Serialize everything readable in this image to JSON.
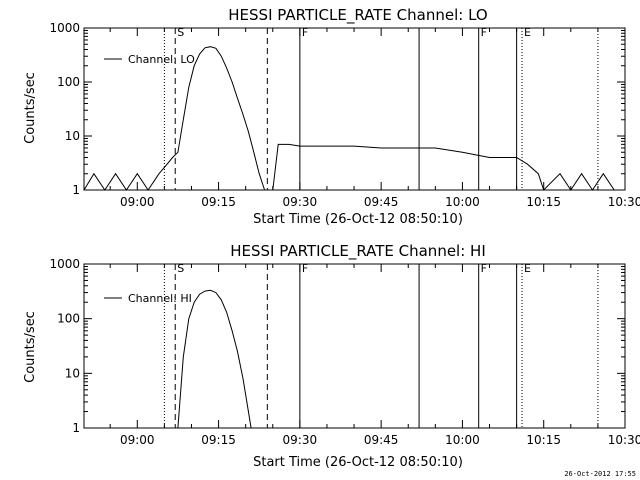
{
  "footer_timestamp": "26-Oct-2012 17:55",
  "colors": {
    "background": "#ffffff",
    "foreground": "#000000"
  },
  "chart_data": [
    {
      "type": "line",
      "title": "HESSI PARTICLE_RATE Channel: LO",
      "xlabel": "Start Time (26-Oct-12 08:50:10)",
      "ylabel": "Counts/sec",
      "y_scale": "log",
      "ylim": [
        1,
        1000
      ],
      "y_ticks": [
        "1",
        "10",
        "100",
        "1000"
      ],
      "x_ticks": [
        "09:00",
        "09:15",
        "09:30",
        "09:45",
        "10:00",
        "10:15",
        "10:30"
      ],
      "grid": false,
      "legend": {
        "position": "top-left",
        "entries": [
          "Channel: LO"
        ]
      },
      "series": [
        {
          "name": "Channel: LO",
          "points": [
            [
              "08:50:10",
              1
            ],
            [
              "08:52",
              2
            ],
            [
              "08:54",
              1
            ],
            [
              "08:56",
              2
            ],
            [
              "08:58",
              1
            ],
            [
              "09:00",
              2
            ],
            [
              "09:02",
              1
            ],
            [
              "09:04",
              2
            ],
            [
              "09:05:30",
              3
            ],
            [
              "09:06:30",
              4
            ],
            [
              "09:07:30",
              5
            ],
            [
              "09:08:30",
              20
            ],
            [
              "09:09:30",
              80
            ],
            [
              "09:10:30",
              200
            ],
            [
              "09:11:30",
              330
            ],
            [
              "09:12:30",
              430
            ],
            [
              "09:13:30",
              450
            ],
            [
              "09:14:30",
              420
            ],
            [
              "09:15:30",
              300
            ],
            [
              "09:16:30",
              180
            ],
            [
              "09:17:30",
              100
            ],
            [
              "09:18:30",
              50
            ],
            [
              "09:19:30",
              25
            ],
            [
              "09:20:30",
              12
            ],
            [
              "09:21:30",
              5
            ],
            [
              "09:22:30",
              2
            ],
            [
              "09:23:30",
              1
            ],
            [
              "09:25",
              1
            ],
            [
              "09:26",
              7
            ],
            [
              "09:28",
              7
            ],
            [
              "09:30",
              6.5
            ],
            [
              "09:35",
              6.5
            ],
            [
              "09:40",
              6.5
            ],
            [
              "09:45",
              6
            ],
            [
              "09:50",
              6
            ],
            [
              "09:55",
              6
            ],
            [
              "10:00",
              5
            ],
            [
              "10:05",
              4
            ],
            [
              "10:08",
              4
            ],
            [
              "10:10",
              4
            ],
            [
              "10:12",
              3
            ],
            [
              "10:14",
              2
            ],
            [
              "10:15",
              1
            ],
            [
              "10:18",
              2
            ],
            [
              "10:20",
              1
            ],
            [
              "10:22",
              2
            ],
            [
              "10:24",
              1
            ],
            [
              "10:26",
              2
            ],
            [
              "10:28",
              1
            ]
          ]
        }
      ],
      "markers": [
        {
          "time": "09:05",
          "style": "dotted",
          "label": ""
        },
        {
          "time": "09:07",
          "style": "dashed",
          "label": "S"
        },
        {
          "time": "09:24",
          "style": "dashed",
          "label": ""
        },
        {
          "time": "09:30",
          "style": "solid",
          "label": "F"
        },
        {
          "time": "09:52",
          "style": "solid",
          "label": ""
        },
        {
          "time": "10:03",
          "style": "solid",
          "label": "F"
        },
        {
          "time": "10:10",
          "style": "solid",
          "label": ""
        },
        {
          "time": "10:11",
          "style": "dotted",
          "label": "E"
        },
        {
          "time": "10:25",
          "style": "dotted",
          "label": ""
        }
      ]
    },
    {
      "type": "line",
      "title": "HESSI PARTICLE_RATE Channel: HI",
      "xlabel": "Start Time (26-Oct-12 08:50:10)",
      "ylabel": "Counts/sec",
      "y_scale": "log",
      "ylim": [
        1,
        1000
      ],
      "y_ticks": [
        "1",
        "10",
        "100",
        "1000"
      ],
      "x_ticks": [
        "09:00",
        "09:15",
        "09:30",
        "09:45",
        "10:00",
        "10:15",
        "10:30"
      ],
      "grid": false,
      "legend": {
        "position": "top-left",
        "entries": [
          "Channel: HI"
        ]
      },
      "series": [
        {
          "name": "Channel: HI",
          "points": [
            [
              "09:07:30",
              1
            ],
            [
              "09:08:30",
              20
            ],
            [
              "09:09:30",
              100
            ],
            [
              "09:10:30",
              200
            ],
            [
              "09:11:30",
              280
            ],
            [
              "09:12:30",
              320
            ],
            [
              "09:13:30",
              330
            ],
            [
              "09:14:30",
              300
            ],
            [
              "09:15:30",
              220
            ],
            [
              "09:16:30",
              130
            ],
            [
              "09:17:30",
              60
            ],
            [
              "09:18:30",
              25
            ],
            [
              "09:19:30",
              8
            ],
            [
              "09:20:30",
              2
            ],
            [
              "09:21",
              1
            ]
          ]
        }
      ],
      "markers": [
        {
          "time": "09:05",
          "style": "dotted",
          "label": ""
        },
        {
          "time": "09:07",
          "style": "dashed",
          "label": "S"
        },
        {
          "time": "09:24",
          "style": "dashed",
          "label": ""
        },
        {
          "time": "09:30",
          "style": "solid",
          "label": "F"
        },
        {
          "time": "09:52",
          "style": "solid",
          "label": ""
        },
        {
          "time": "10:03",
          "style": "solid",
          "label": "F"
        },
        {
          "time": "10:10",
          "style": "solid",
          "label": ""
        },
        {
          "time": "10:11",
          "style": "dotted",
          "label": "E"
        },
        {
          "time": "10:25",
          "style": "dotted",
          "label": ""
        }
      ]
    }
  ]
}
